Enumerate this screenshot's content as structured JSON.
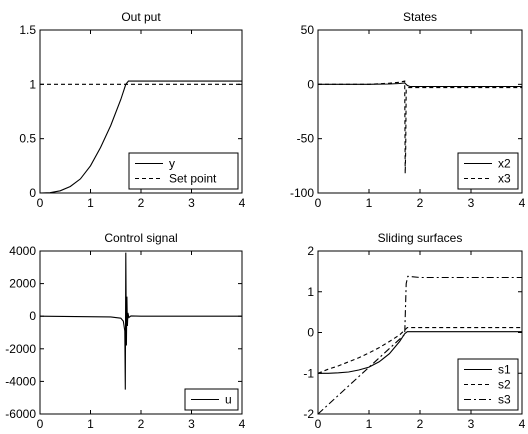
{
  "chart_data": [
    {
      "type": "line",
      "title": "Out put",
      "xlabel": "",
      "ylabel": "",
      "xlim": [
        0,
        4
      ],
      "ylim": [
        0,
        1.5
      ],
      "xticks": [
        "0",
        "1",
        "2",
        "3",
        "4"
      ],
      "yticks": [
        "0",
        "0.5",
        "1",
        "1.5"
      ],
      "grid": false,
      "legend_position": "bottom-right",
      "series": [
        {
          "name": "y",
          "dash": "solid",
          "x": [
            0,
            0.2,
            0.4,
            0.6,
            0.8,
            1.0,
            1.2,
            1.4,
            1.6,
            1.7,
            1.75,
            2.0,
            3.0,
            4.0
          ],
          "y": [
            0,
            0.003,
            0.02,
            0.06,
            0.13,
            0.25,
            0.42,
            0.62,
            0.86,
            1.0,
            1.03,
            1.03,
            1.03,
            1.03
          ]
        },
        {
          "name": "Set point",
          "dash": "dashed",
          "x": [
            0,
            4
          ],
          "y": [
            1,
            1
          ]
        }
      ]
    },
    {
      "type": "line",
      "title": "States",
      "xlabel": "",
      "ylabel": "",
      "xlim": [
        0,
        4
      ],
      "ylim": [
        -100,
        50
      ],
      "xticks": [
        "0",
        "1",
        "2",
        "3",
        "4"
      ],
      "yticks": [
        "-100",
        "-50",
        "0",
        "50"
      ],
      "grid": false,
      "legend_position": "bottom-right",
      "series": [
        {
          "name": "x2",
          "dash": "solid",
          "x": [
            0,
            1.0,
            1.4,
            1.6,
            1.7,
            1.75,
            1.8,
            2.0,
            3.0,
            4.0
          ],
          "y": [
            0,
            0,
            0.3,
            0.8,
            1.2,
            -1,
            -2,
            -2,
            -2,
            -2
          ]
        },
        {
          "name": "x3",
          "dash": "dashed",
          "x": [
            0,
            1.0,
            1.4,
            1.6,
            1.7,
            1.71,
            1.72,
            1.73,
            1.76,
            1.8,
            2.0,
            4.0
          ],
          "y": [
            0,
            0,
            1,
            2,
            3,
            -82,
            -60,
            -5,
            -3,
            -3,
            -3,
            -3
          ]
        }
      ]
    },
    {
      "type": "line",
      "title": "Control signal",
      "xlabel": "",
      "ylabel": "",
      "xlim": [
        0,
        4
      ],
      "ylim": [
        -6000,
        4000
      ],
      "xticks": [
        "0",
        "1",
        "2",
        "3",
        "4"
      ],
      "yticks": [
        "-6000",
        "-4000",
        "-2000",
        "0",
        "2000",
        "4000"
      ],
      "grid": false,
      "legend_position": "bottom-right",
      "series": [
        {
          "name": "u",
          "dash": "solid",
          "x": [
            0,
            1.4,
            1.6,
            1.65,
            1.68,
            1.69,
            1.7,
            1.71,
            1.72,
            1.73,
            1.74,
            1.76,
            1.8,
            2.0,
            4.0
          ],
          "y": [
            0,
            -40,
            -120,
            -300,
            -900,
            -4500,
            3900,
            -1800,
            1200,
            -600,
            200,
            -80,
            20,
            0,
            0
          ]
        }
      ]
    },
    {
      "type": "line",
      "title": "Sliding surfaces",
      "xlabel": "",
      "ylabel": "",
      "xlim": [
        0,
        4
      ],
      "ylim": [
        -2,
        2
      ],
      "xticks": [
        "0",
        "1",
        "2",
        "3",
        "4"
      ],
      "yticks": [
        "-2",
        "-1",
        "0",
        "1",
        "2"
      ],
      "grid": false,
      "legend_position": "bottom-right",
      "series": [
        {
          "name": "s1",
          "dash": "solid",
          "x": [
            0,
            0.2,
            0.4,
            0.6,
            0.8,
            1.0,
            1.2,
            1.4,
            1.6,
            1.7,
            1.75,
            2.0,
            4.0
          ],
          "y": [
            -1,
            -1,
            -0.99,
            -0.97,
            -0.92,
            -0.85,
            -0.72,
            -0.52,
            -0.22,
            -0.03,
            0.02,
            0.02,
            0.02
          ]
        },
        {
          "name": "s2",
          "dash": "dashed",
          "x": [
            0,
            0.2,
            0.4,
            0.6,
            0.8,
            1.0,
            1.2,
            1.4,
            1.6,
            1.75,
            2.0,
            4.0
          ],
          "y": [
            -1,
            -0.9,
            -0.82,
            -0.72,
            -0.62,
            -0.5,
            -0.37,
            -0.22,
            -0.06,
            0.12,
            0.12,
            0.12
          ]
        },
        {
          "name": "s3",
          "dash": "dashdot",
          "x": [
            0,
            1.7,
            1.73,
            1.76,
            2.0,
            4.0
          ],
          "y": [
            -2,
            -0.05,
            1.2,
            1.38,
            1.35,
            1.35
          ]
        }
      ]
    }
  ]
}
